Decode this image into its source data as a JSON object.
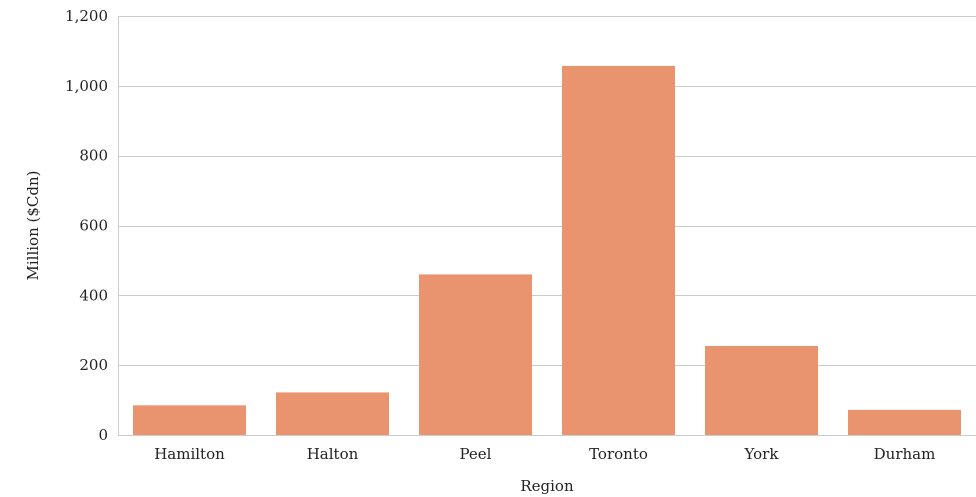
{
  "chart_data": {
    "type": "bar",
    "categories": [
      "Hamilton",
      "Halton",
      "Peel",
      "Toronto",
      "York",
      "Durham"
    ],
    "values": [
      85,
      122,
      460,
      1057,
      255,
      72
    ],
    "xlabel": "Region",
    "ylabel": "Million ($Cdn)",
    "ylim": [
      0,
      1200
    ],
    "yticks": [
      0,
      200,
      400,
      600,
      800,
      1000,
      1200
    ],
    "ytick_labels": [
      "0",
      "200",
      "400",
      "600",
      "800",
      "1,000",
      "1,200"
    ],
    "grid": true,
    "bar_color": "#e9946f",
    "grid_color": "#cccccc",
    "text_color": "#222222"
  }
}
